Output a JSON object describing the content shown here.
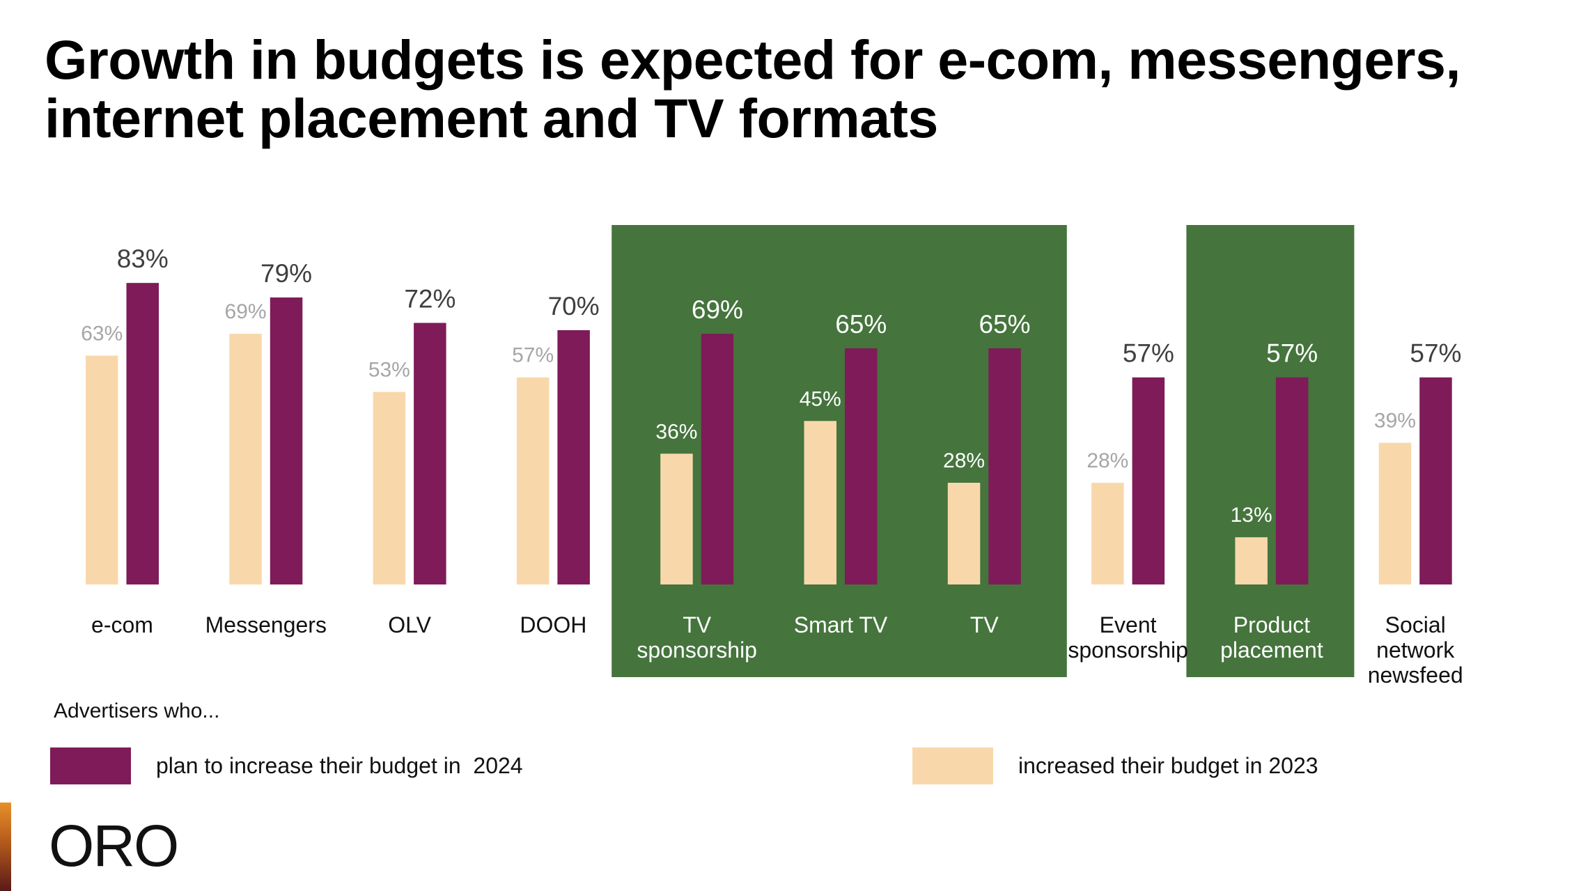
{
  "title": {
    "line1": "Growth in budgets is expected for e-com, messengers,",
    "line2": "internet placement and TV formats"
  },
  "colors": {
    "plan_2024": "#7f1b58",
    "increased_2023": "#f8d8ab",
    "highlight_box": "#45743d",
    "label_dark": "#3f3f3f",
    "label_grey": "#a6a6a6",
    "label_on_highlight": "#ffffff"
  },
  "chart_data": {
    "type": "bar",
    "title": "Growth in budgets is expected for e-com, messengers, internet placement and TV formats",
    "xlabel": "",
    "ylabel": "",
    "ylim": [
      0,
      100
    ],
    "grid": false,
    "categories": [
      "e-com",
      "Messengers",
      "OLV",
      "DOOH",
      "TV sponsorship",
      "Smart TV",
      "TV",
      "Event sponsorship",
      "Product placement",
      "Social network newsfeed"
    ],
    "category_lines": [
      [
        "e-com"
      ],
      [
        "Messengers"
      ],
      [
        "OLV"
      ],
      [
        "DOOH"
      ],
      [
        "TV",
        "sponsorship"
      ],
      [
        "Smart TV"
      ],
      [
        "TV"
      ],
      [
        "Event",
        "sponsorship"
      ],
      [
        "Product",
        "placement"
      ],
      [
        "Social",
        "network",
        "newsfeed"
      ]
    ],
    "highlighted_categories": [
      [
        "TV sponsorship",
        "Smart TV",
        "TV"
      ],
      [
        "Product placement"
      ]
    ],
    "series": [
      {
        "name": "increased their budget in 2023",
        "key": "increased_2023",
        "values": [
          63,
          69,
          53,
          57,
          36,
          45,
          28,
          28,
          13,
          39
        ]
      },
      {
        "name": "plan to increase their budget in  2024",
        "key": "plan_2024",
        "values": [
          83,
          79,
          72,
          70,
          69,
          65,
          65,
          57,
          57,
          57
        ]
      }
    ],
    "value_format": "{v}%",
    "legend": {
      "title": "Advertisers who...",
      "placement": "bottom",
      "entries": [
        {
          "label": "plan to increase their budget in  2024",
          "key": "plan_2024"
        },
        {
          "label": "increased their budget in 2023",
          "key": "increased_2023"
        }
      ]
    }
  },
  "logo": {
    "text": "ORO"
  }
}
